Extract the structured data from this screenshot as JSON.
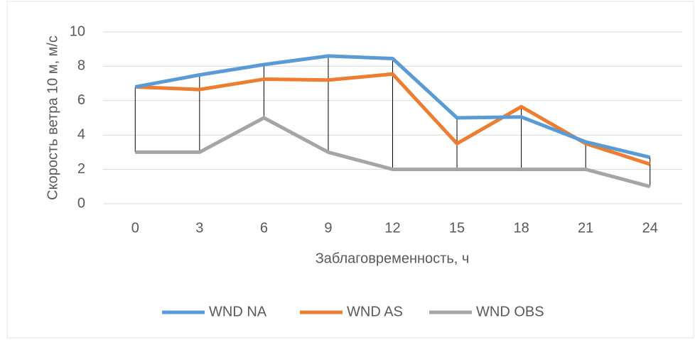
{
  "chart_data": {
    "type": "line",
    "y_label": "Скорость ветра 10 м, м/с",
    "x_label": "Заблаговременность, ч",
    "x": [
      0,
      3,
      6,
      9,
      12,
      15,
      18,
      21,
      24
    ],
    "series": [
      {
        "name": "WND NA",
        "color": "#5b9bd5",
        "values": [
          6.8,
          7.5,
          8.1,
          8.6,
          8.45,
          5.0,
          5.05,
          3.6,
          2.7
        ]
      },
      {
        "name": "WND AS",
        "color": "#ed7d31",
        "values": [
          6.8,
          6.65,
          7.25,
          7.2,
          7.55,
          3.5,
          5.65,
          3.5,
          2.3
        ]
      },
      {
        "name": "WND OBS",
        "color": "#a5a5a5",
        "values": [
          3,
          3,
          5,
          3,
          2,
          2,
          2,
          2,
          1
        ]
      }
    ],
    "ylim": [
      0,
      10
    ],
    "yticks": [
      0,
      2,
      4,
      6,
      8,
      10
    ],
    "grid": true,
    "legend": "bottom",
    "drop_lines": true
  }
}
